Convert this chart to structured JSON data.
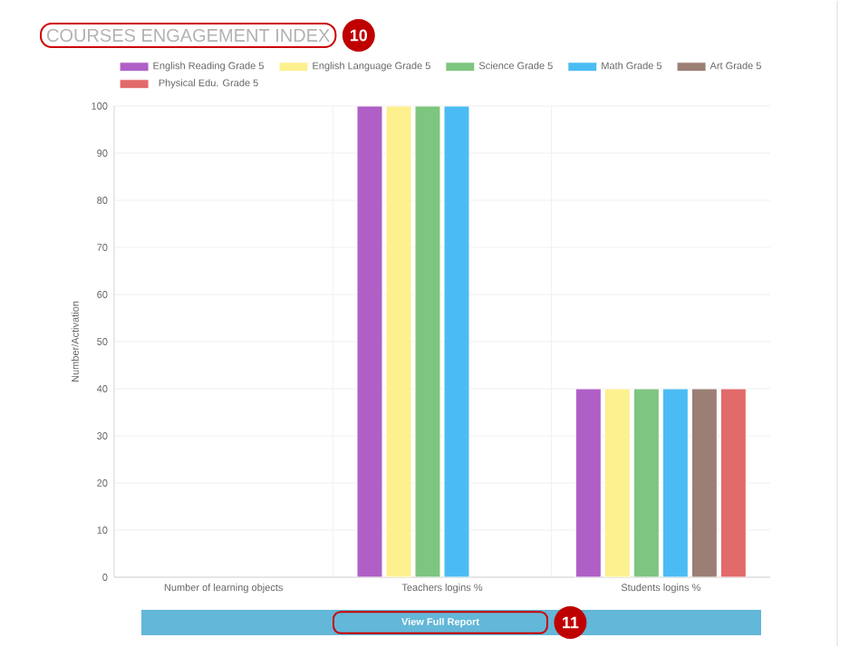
{
  "chart_data": {
    "type": "bar",
    "title": "COURSES ENGAGEMENT INDEX",
    "ylabel": "Number/Activation",
    "categories": [
      "Number of learning objects",
      "Teachers logins %",
      "Students logins %"
    ],
    "series": [
      {
        "name": "English Reading Grade 5",
        "color": "#b05fc6",
        "values": [
          null,
          100,
          40
        ]
      },
      {
        "name": "English Language Grade 5",
        "color": "#fdf08e",
        "values": [
          null,
          100,
          40
        ]
      },
      {
        "name": "Science Grade 5",
        "color": "#7ec580",
        "values": [
          null,
          100,
          40
        ]
      },
      {
        "name": "Math Grade 5",
        "color": "#4bbcf3",
        "values": [
          null,
          100,
          40
        ]
      },
      {
        "name": "Art Grade 5",
        "color": "#9b7f75",
        "values": [
          null,
          null,
          40
        ]
      },
      {
        "name": "Physical Edu. Grade 5",
        "color": "#e26a6a",
        "values": [
          null,
          null,
          40
        ]
      }
    ],
    "ylim": [
      0,
      100
    ],
    "yticks": [
      0,
      10,
      20,
      30,
      40,
      50,
      60,
      70,
      80,
      90,
      100
    ],
    "grid": true,
    "legend": "top",
    "annotations": [
      "10",
      "View Full Report",
      "11"
    ]
  }
}
